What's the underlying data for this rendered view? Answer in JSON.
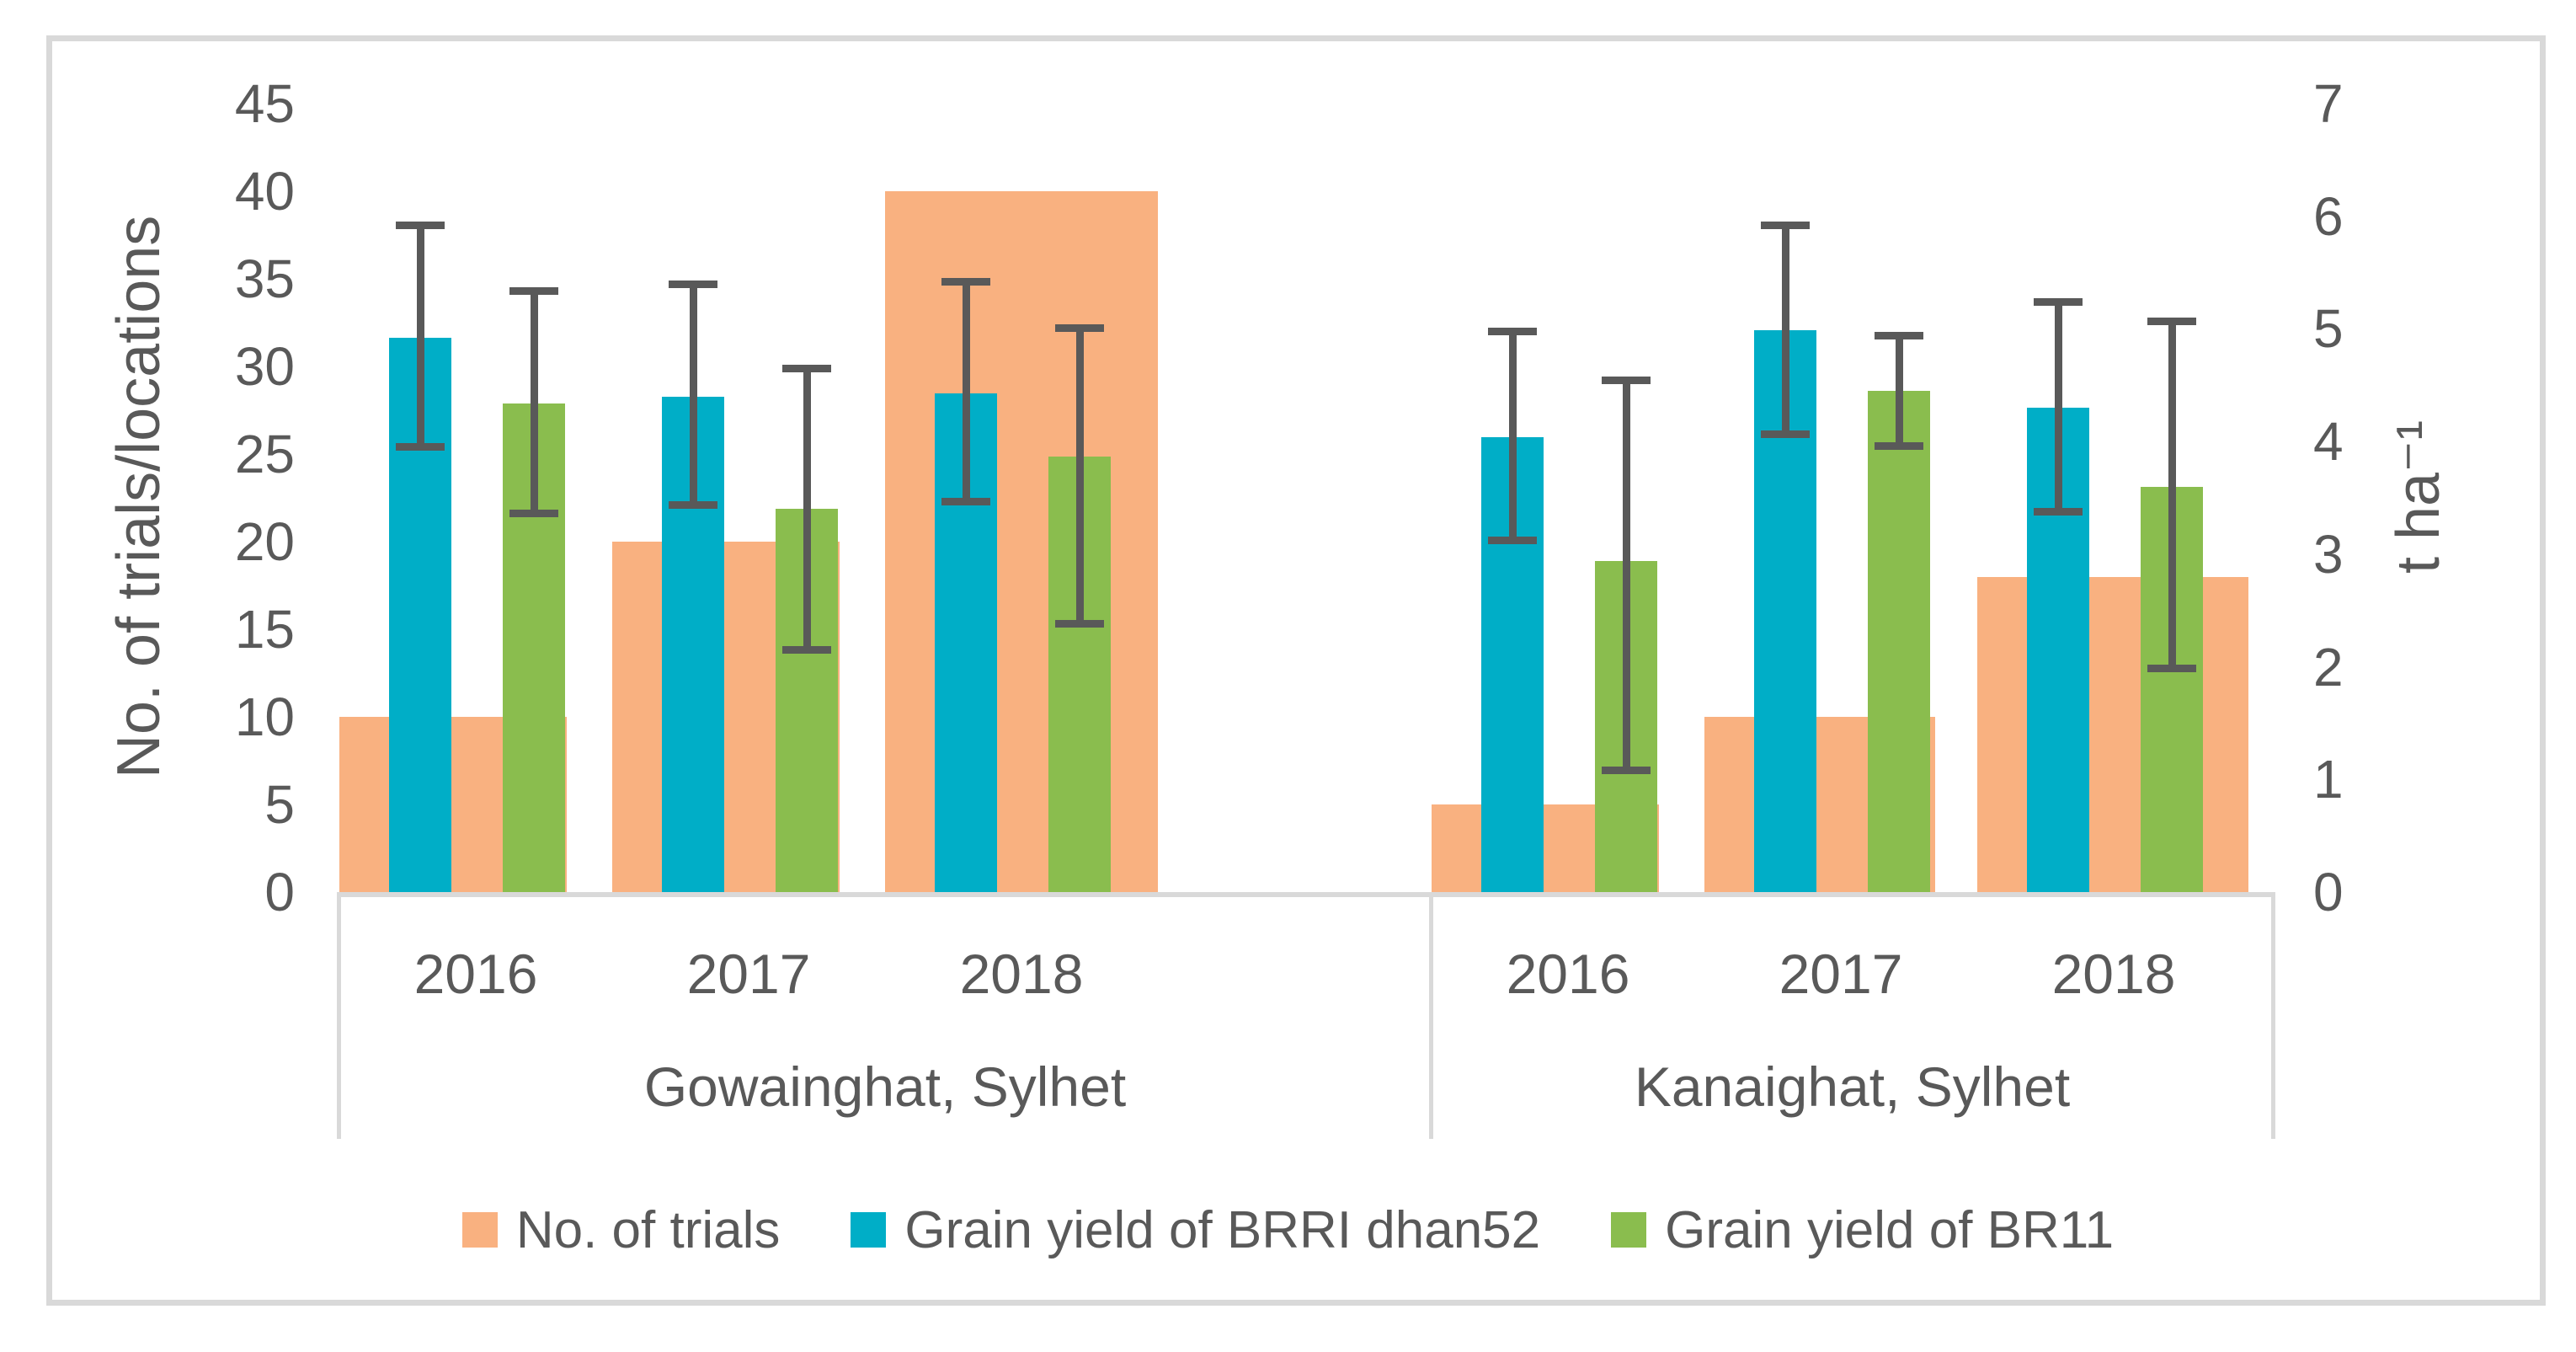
{
  "chart_data": {
    "type": "bar",
    "title": "",
    "left_axis": {
      "label": "No. of trials/locations",
      "min": 0,
      "max": 45,
      "step": 5,
      "ticks": [
        45,
        40,
        35,
        30,
        25,
        20,
        15,
        10,
        5,
        0
      ]
    },
    "right_axis": {
      "label": "t ha⁻¹",
      "min": 0,
      "max": 7,
      "step": 1,
      "ticks": [
        7,
        6,
        5,
        4,
        3,
        2,
        1,
        0
      ]
    },
    "legend": [
      {
        "label": "No. of trials",
        "color": "#F9B180",
        "series_key": "trials"
      },
      {
        "label": "Grain yield  of BRRI dhan52",
        "color": "#00AEC7",
        "series_key": "brri_dhan52"
      },
      {
        "label": "Grain yield  of BR11",
        "color": "#8ABD4E",
        "series_key": "br11"
      }
    ],
    "series_units": {
      "trials": "count (left axis)",
      "brri_dhan52": "t ha⁻¹ (right axis)",
      "br11": "t ha⁻¹ (right axis)"
    },
    "grid": "off",
    "legend_position": "bottom",
    "groups": [
      {
        "location": "Gowainghat, Sylhet",
        "years": [
          {
            "year": "2016",
            "trials": 10,
            "brri_dhan52": {
              "value": 4.92,
              "err_low": 3.92,
              "err_high": 5.95
            },
            "br11": {
              "value": 4.34,
              "err_low": 3.33,
              "err_high": 5.37
            }
          },
          {
            "year": "2017",
            "trials": 20,
            "brri_dhan52": {
              "value": 4.4,
              "err_low": 3.4,
              "err_high": 5.43
            },
            "br11": {
              "value": 3.4,
              "err_low": 2.12,
              "err_high": 4.68
            }
          },
          {
            "year": "2018",
            "trials": 40,
            "brri_dhan52": {
              "value": 4.43,
              "err_low": 3.43,
              "err_high": 5.45
            },
            "br11": {
              "value": 3.87,
              "err_low": 2.35,
              "err_high": 5.04
            }
          }
        ]
      },
      {
        "location": "Kanaighat, Sylhet",
        "years": [
          {
            "year": "2016",
            "trials": 5,
            "brri_dhan52": {
              "value": 4.04,
              "err_low": 3.09,
              "err_high": 5.01
            },
            "br11": {
              "value": 2.94,
              "err_low": 1.05,
              "err_high": 4.58
            }
          },
          {
            "year": "2017",
            "trials": 10,
            "brri_dhan52": {
              "value": 4.99,
              "err_low": 4.03,
              "err_high": 5.95
            },
            "br11": {
              "value": 4.45,
              "err_low": 3.93,
              "err_high": 4.97
            }
          },
          {
            "year": "2018",
            "trials": 18,
            "brri_dhan52": {
              "value": 4.3,
              "err_low": 3.34,
              "err_high": 5.27
            },
            "br11": {
              "value": 3.6,
              "err_low": 1.95,
              "err_high": 5.1
            }
          }
        ]
      }
    ],
    "colors": {
      "trials": "#F9B180",
      "brri_dhan52": "#00AEC7",
      "br11": "#8ABD4E",
      "error_bar": "#595959",
      "axis_text": "#595959",
      "axis_line": "#D9D9D9"
    }
  }
}
